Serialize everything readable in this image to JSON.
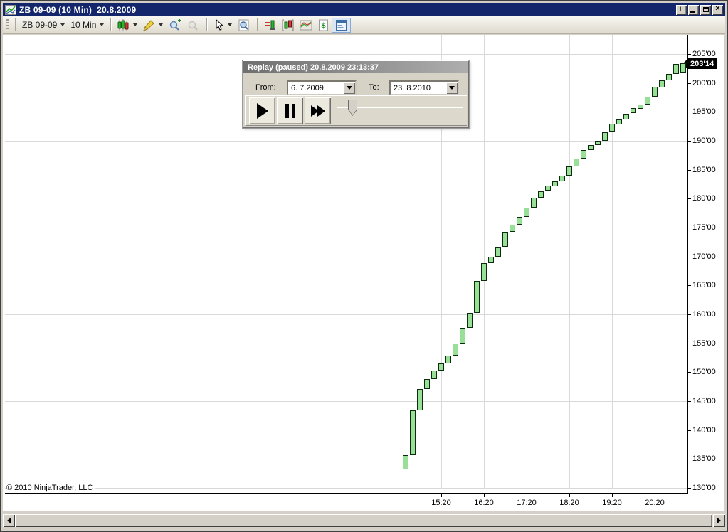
{
  "window": {
    "title": "ZB 09-09 (10 Min)  20.8.2009",
    "buttons": {
      "link": "L",
      "close": "×"
    }
  },
  "toolbar": {
    "instrument": "ZB 09-09",
    "interval": "10 Min"
  },
  "replay": {
    "title": "Replay (paused) 20.8.2009 23:13:37",
    "from_label": "From:",
    "from_value": "6. 7.2009",
    "to_label": "To:",
    "to_value": "23. 8.2010"
  },
  "chart_data": {
    "type": "candlestick",
    "instrument": "ZB 09-09",
    "interval": "10 Min",
    "copyright": "© 2010 NinjaTrader, LLC",
    "last_price_label": "203'14",
    "last_price_value": 203.4375,
    "y_axis": {
      "min": 130,
      "max": 205,
      "step": 5,
      "labels": [
        {
          "price": 205,
          "text": "205'00"
        },
        {
          "price": 200,
          "text": "200'00"
        },
        {
          "price": 195,
          "text": "195'00"
        },
        {
          "price": 190,
          "text": "190'00"
        },
        {
          "price": 185,
          "text": "185'00"
        },
        {
          "price": 180,
          "text": "180'00"
        },
        {
          "price": 175,
          "text": "175'00"
        },
        {
          "price": 170,
          "text": "170'00"
        },
        {
          "price": 165,
          "text": "165'00"
        },
        {
          "price": 160,
          "text": "160'00"
        },
        {
          "price": 155,
          "text": "155'00"
        },
        {
          "price": 150,
          "text": "150'00"
        },
        {
          "price": 145,
          "text": "145'00"
        },
        {
          "price": 140,
          "text": "140'00"
        },
        {
          "price": 135,
          "text": "135'00"
        },
        {
          "price": 130,
          "text": "130'00"
        }
      ]
    },
    "x_axis": {
      "labels": [
        "15:20",
        "16:20",
        "17:20",
        "18:20",
        "19:20",
        "20:20"
      ]
    },
    "h_gridline_prices": [
      205,
      190,
      175,
      160,
      145,
      130
    ],
    "v_gridline_times": [
      "15:20",
      "16:20",
      "17:20",
      "18:20",
      "19:20",
      "20:20"
    ],
    "colors": {
      "up_fill": "#98e098",
      "up_border": "#0d2b0d",
      "grid": "#d9d9d9",
      "titlebar": "#14266b"
    },
    "candles": [
      {
        "t": "14:30",
        "o": 133.3,
        "c": 135.7
      },
      {
        "t": "14:40",
        "o": 135.7,
        "c": 143.4
      },
      {
        "t": "14:50",
        "o": 143.4,
        "c": 147.1
      },
      {
        "t": "15:00",
        "o": 147.1,
        "c": 148.8
      },
      {
        "t": "15:10",
        "o": 148.8,
        "c": 150.3
      },
      {
        "t": "15:20",
        "o": 150.3,
        "c": 151.5
      },
      {
        "t": "15:30",
        "o": 151.5,
        "c": 152.9
      },
      {
        "t": "15:40",
        "o": 152.9,
        "c": 155.0
      },
      {
        "t": "15:50",
        "o": 155.0,
        "c": 157.7
      },
      {
        "t": "16:00",
        "o": 157.7,
        "c": 160.3
      },
      {
        "t": "16:10",
        "o": 160.3,
        "c": 165.8
      },
      {
        "t": "16:20",
        "o": 165.8,
        "c": 168.9
      },
      {
        "t": "16:30",
        "o": 168.9,
        "c": 170.0
      },
      {
        "t": "16:40",
        "o": 170.0,
        "c": 171.7
      },
      {
        "t": "16:50",
        "o": 171.7,
        "c": 174.3
      },
      {
        "t": "17:00",
        "o": 174.3,
        "c": 175.5
      },
      {
        "t": "17:10",
        "o": 175.5,
        "c": 176.9
      },
      {
        "t": "17:20",
        "o": 176.9,
        "c": 178.5
      },
      {
        "t": "17:30",
        "o": 178.5,
        "c": 180.2
      },
      {
        "t": "17:40",
        "o": 180.2,
        "c": 181.3
      },
      {
        "t": "17:50",
        "o": 181.3,
        "c": 182.2
      },
      {
        "t": "18:00",
        "o": 182.2,
        "c": 183.0
      },
      {
        "t": "18:10",
        "o": 183.0,
        "c": 184.0
      },
      {
        "t": "18:20",
        "o": 184.0,
        "c": 185.6
      },
      {
        "t": "18:30",
        "o": 185.6,
        "c": 186.9
      },
      {
        "t": "18:40",
        "o": 186.9,
        "c": 188.4
      },
      {
        "t": "18:50",
        "o": 188.4,
        "c": 189.3
      },
      {
        "t": "19:00",
        "o": 189.3,
        "c": 190.0
      },
      {
        "t": "19:10",
        "o": 190.0,
        "c": 191.5
      },
      {
        "t": "19:20",
        "o": 191.5,
        "c": 192.9
      },
      {
        "t": "19:30",
        "o": 192.9,
        "c": 193.7
      },
      {
        "t": "19:40",
        "o": 193.7,
        "c": 194.7
      },
      {
        "t": "19:50",
        "o": 194.7,
        "c": 195.6
      },
      {
        "t": "20:00",
        "o": 195.6,
        "c": 196.3
      },
      {
        "t": "20:10",
        "o": 196.3,
        "c": 197.6
      },
      {
        "t": "20:20",
        "o": 197.6,
        "c": 199.3
      },
      {
        "t": "20:30",
        "o": 199.3,
        "c": 200.5
      },
      {
        "t": "20:40",
        "o": 200.5,
        "c": 201.6
      },
      {
        "t": "20:50",
        "o": 201.6,
        "c": 203.3
      },
      {
        "t": "21:00",
        "o": 201.8,
        "c": 203.44
      }
    ]
  }
}
